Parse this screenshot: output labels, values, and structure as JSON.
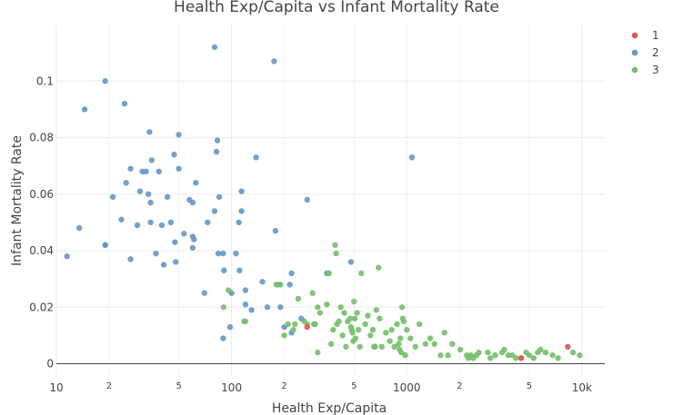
{
  "chart_data": {
    "type": "scatter",
    "title": "Health Exp/Capita vs Infant Mortality Rate",
    "xlabel": "Health Exp/Capita",
    "ylabel": "Infant Mortality Rate",
    "x_scale": "log",
    "xlim": [
      10,
      13500
    ],
    "ylim": [
      -0.004,
      0.12
    ],
    "grid": true,
    "legend_position": "top-right",
    "x_major_ticks": [
      {
        "value": 10,
        "label": "10"
      },
      {
        "value": 100,
        "label": "100"
      },
      {
        "value": 1000,
        "label": "1000"
      },
      {
        "value": 10000,
        "label": "10k"
      }
    ],
    "x_minor_ticks": [
      {
        "value": 20,
        "label": "2"
      },
      {
        "value": 50,
        "label": "5"
      },
      {
        "value": 200,
        "label": "2"
      },
      {
        "value": 500,
        "label": "5"
      },
      {
        "value": 2000,
        "label": "2"
      },
      {
        "value": 5000,
        "label": "5"
      }
    ],
    "y_ticks": [
      {
        "value": 0,
        "label": "0"
      },
      {
        "value": 0.02,
        "label": "0.02"
      },
      {
        "value": 0.04,
        "label": "0.04"
      },
      {
        "value": 0.06,
        "label": "0.06"
      },
      {
        "value": 0.08,
        "label": "0.08"
      },
      {
        "value": 0.1,
        "label": "0.1"
      }
    ],
    "series": [
      {
        "name": "1",
        "color": "#e45756",
        "points": [
          [
            270,
            0.013
          ],
          [
            4500,
            0.002
          ],
          [
            8300,
            0.006
          ]
        ]
      },
      {
        "name": "2",
        "color": "#6699c8",
        "points": [
          [
            11.5,
            0.038
          ],
          [
            13.5,
            0.048
          ],
          [
            14.5,
            0.09
          ],
          [
            19,
            0.1
          ],
          [
            19,
            0.042
          ],
          [
            19,
            0.042
          ],
          [
            21,
            0.059
          ],
          [
            23.5,
            0.051
          ],
          [
            24.5,
            0.092
          ],
          [
            25,
            0.064
          ],
          [
            26.5,
            0.069
          ],
          [
            26.5,
            0.037
          ],
          [
            29,
            0.049
          ],
          [
            30,
            0.061
          ],
          [
            31,
            0.068
          ],
          [
            32.5,
            0.068
          ],
          [
            33.5,
            0.06
          ],
          [
            34,
            0.082
          ],
          [
            34.5,
            0.05
          ],
          [
            34.5,
            0.057
          ],
          [
            35,
            0.072
          ],
          [
            37,
            0.039
          ],
          [
            38.5,
            0.068
          ],
          [
            40,
            0.049
          ],
          [
            41,
            0.035
          ],
          [
            43,
            0.059
          ],
          [
            45,
            0.05
          ],
          [
            47,
            0.074
          ],
          [
            47.5,
            0.043
          ],
          [
            48,
            0.036
          ],
          [
            50,
            0.081
          ],
          [
            50,
            0.069
          ],
          [
            53.5,
            0.046
          ],
          [
            57.5,
            0.058
          ],
          [
            60,
            0.057
          ],
          [
            60,
            0.045
          ],
          [
            60,
            0.041
          ],
          [
            61,
            0.044
          ],
          [
            62.5,
            0.064
          ],
          [
            70,
            0.025
          ],
          [
            73,
            0.05
          ],
          [
            80,
            0.054
          ],
          [
            80,
            0.112
          ],
          [
            82,
            0.075
          ],
          [
            83,
            0.079
          ],
          [
            84,
            0.039
          ],
          [
            85,
            0.059
          ],
          [
            89.5,
            0.009
          ],
          [
            89.5,
            0.039
          ],
          [
            90.5,
            0.033
          ],
          [
            98,
            0.013
          ],
          [
            100,
            0.025
          ],
          [
            106,
            0.039
          ],
          [
            110,
            0.05
          ],
          [
            111,
            0.033
          ],
          [
            114,
            0.054
          ],
          [
            114,
            0.061
          ],
          [
            120,
            0.026
          ],
          [
            120,
            0.021
          ],
          [
            130,
            0.019
          ],
          [
            138,
            0.073
          ],
          [
            150,
            0.029
          ],
          [
            160,
            0.02
          ],
          [
            175,
            0.107
          ],
          [
            178,
            0.047
          ],
          [
            185,
            0.028
          ],
          [
            190,
            0.02
          ],
          [
            200,
            0.013
          ],
          [
            215,
            0.028
          ],
          [
            220,
            0.032
          ],
          [
            220,
            0.011
          ],
          [
            250,
            0.016
          ],
          [
            270,
            0.058
          ],
          [
            350,
            0.032
          ],
          [
            480,
            0.036
          ],
          [
            1070,
            0.073
          ]
        ]
      },
      {
        "name": "3",
        "color": "#77bf6c",
        "points": [
          [
            90,
            0.02
          ],
          [
            96,
            0.026
          ],
          [
            118,
            0.015
          ],
          [
            120,
            0.015
          ],
          [
            180,
            0.028
          ],
          [
            190,
            0.028
          ],
          [
            200,
            0.01
          ],
          [
            210,
            0.014
          ],
          [
            225,
            0.012
          ],
          [
            230,
            0.014
          ],
          [
            240,
            0.023
          ],
          [
            260,
            0.015
          ],
          [
            270,
            0.014
          ],
          [
            290,
            0.025
          ],
          [
            295,
            0.014
          ],
          [
            300,
            0.014
          ],
          [
            310,
            0.02
          ],
          [
            310,
            0.004
          ],
          [
            320,
            0.018
          ],
          [
            350,
            0.021
          ],
          [
            360,
            0.032
          ],
          [
            370,
            0.007
          ],
          [
            380,
            0.012
          ],
          [
            390,
            0.042
          ],
          [
            395,
            0.039
          ],
          [
            400,
            0.014
          ],
          [
            410,
            0.015
          ],
          [
            420,
            0.02
          ],
          [
            430,
            0.01
          ],
          [
            440,
            0.018
          ],
          [
            450,
            0.006
          ],
          [
            460,
            0.015
          ],
          [
            475,
            0.016
          ],
          [
            480,
            0.013
          ],
          [
            485,
            0.012
          ],
          [
            490,
            0.011
          ],
          [
            495,
            0.008
          ],
          [
            500,
            0.022
          ],
          [
            505,
            0.016
          ],
          [
            510,
            0.009
          ],
          [
            520,
            0.018
          ],
          [
            530,
            0.012
          ],
          [
            540,
            0.006
          ],
          [
            550,
            0.032
          ],
          [
            580,
            0.014
          ],
          [
            600,
            0.017
          ],
          [
            620,
            0.01
          ],
          [
            640,
            0.012
          ],
          [
            650,
            0.006
          ],
          [
            660,
            0.006
          ],
          [
            670,
            0.019
          ],
          [
            690,
            0.034
          ],
          [
            700,
            0.016
          ],
          [
            720,
            0.006
          ],
          [
            760,
            0.011
          ],
          [
            800,
            0.008
          ],
          [
            820,
            0.012
          ],
          [
            850,
            0.006
          ],
          [
            880,
            0.014
          ],
          [
            900,
            0.007
          ],
          [
            910,
            0.005
          ],
          [
            920,
            0.009
          ],
          [
            930,
            0.004
          ],
          [
            940,
            0.02
          ],
          [
            950,
            0.016
          ],
          [
            960,
            0.015
          ],
          [
            980,
            0.003
          ],
          [
            1000,
            0.012
          ],
          [
            1050,
            0.009
          ],
          [
            1120,
            0.006
          ],
          [
            1180,
            0.014
          ],
          [
            1280,
            0.007
          ],
          [
            1360,
            0.009
          ],
          [
            1440,
            0.007
          ],
          [
            1560,
            0.003
          ],
          [
            1640,
            0.011
          ],
          [
            1720,
            0.003
          ],
          [
            1820,
            0.007
          ],
          [
            2020,
            0.005
          ],
          [
            2200,
            0.003
          ],
          [
            2250,
            0.002
          ],
          [
            2320,
            0.003
          ],
          [
            2400,
            0.002
          ],
          [
            2500,
            0.003
          ],
          [
            2580,
            0.004
          ],
          [
            2900,
            0.004
          ],
          [
            3000,
            0.002
          ],
          [
            3200,
            0.003
          ],
          [
            3500,
            0.004
          ],
          [
            3600,
            0.005
          ],
          [
            3800,
            0.003
          ],
          [
            4000,
            0.003
          ],
          [
            4200,
            0.002
          ],
          [
            4500,
            0.002
          ],
          [
            4800,
            0.004
          ],
          [
            5000,
            0.003
          ],
          [
            5300,
            0.002
          ],
          [
            5600,
            0.004
          ],
          [
            5800,
            0.005
          ],
          [
            6200,
            0.004
          ],
          [
            6800,
            0.003
          ],
          [
            7300,
            0.002
          ],
          [
            8900,
            0.004
          ],
          [
            9700,
            0.003
          ]
        ]
      }
    ]
  }
}
